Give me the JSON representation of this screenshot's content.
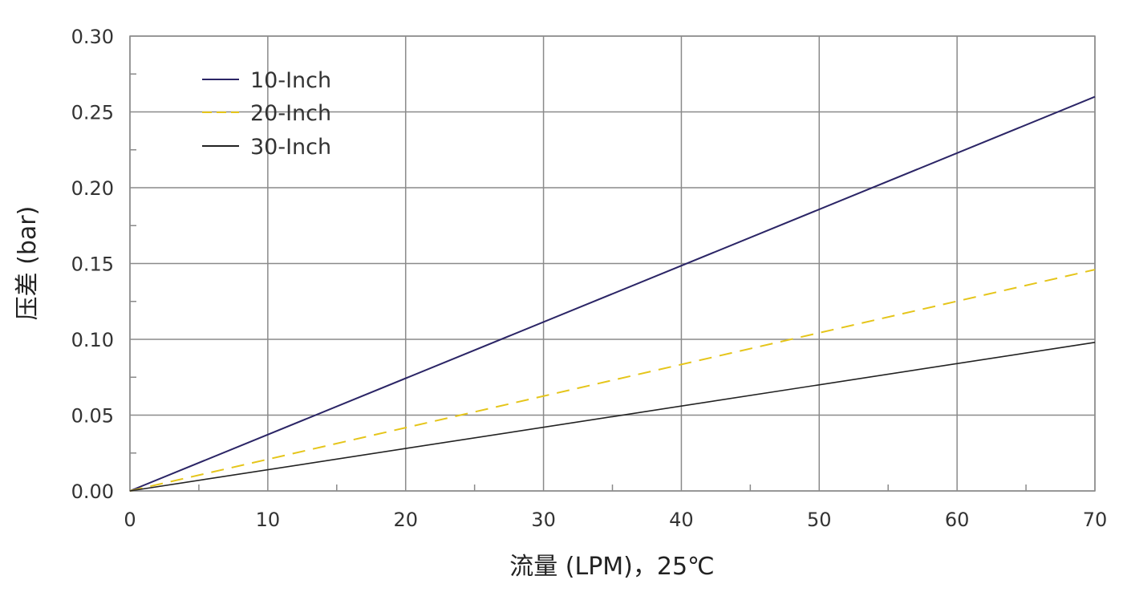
{
  "chart_data": {
    "type": "line",
    "xlabel": "流量 (LPM)，25℃",
    "ylabel": "压差 (bar)",
    "xlim": [
      0,
      70
    ],
    "ylim": [
      0,
      0.3
    ],
    "x_ticks": [
      "0",
      "10",
      "20",
      "30",
      "40",
      "50",
      "60",
      "70"
    ],
    "y_ticks": [
      "0.00",
      "0.05",
      "0.10",
      "0.15",
      "0.20",
      "0.25",
      "0.30"
    ],
    "grid": true,
    "legend_position": "top-left",
    "series": [
      {
        "name": "10-Inch",
        "color": "#2b2566",
        "dash": "solid",
        "x": [
          0,
          70
        ],
        "y": [
          0,
          0.26
        ]
      },
      {
        "name": "20-Inch",
        "color": "#e5c51a",
        "dash": "dashed",
        "x": [
          0,
          70
        ],
        "y": [
          0,
          0.146
        ]
      },
      {
        "name": "30-Inch",
        "color": "#222222",
        "dash": "solid",
        "x": [
          0,
          70
        ],
        "y": [
          0,
          0.098
        ]
      }
    ]
  }
}
